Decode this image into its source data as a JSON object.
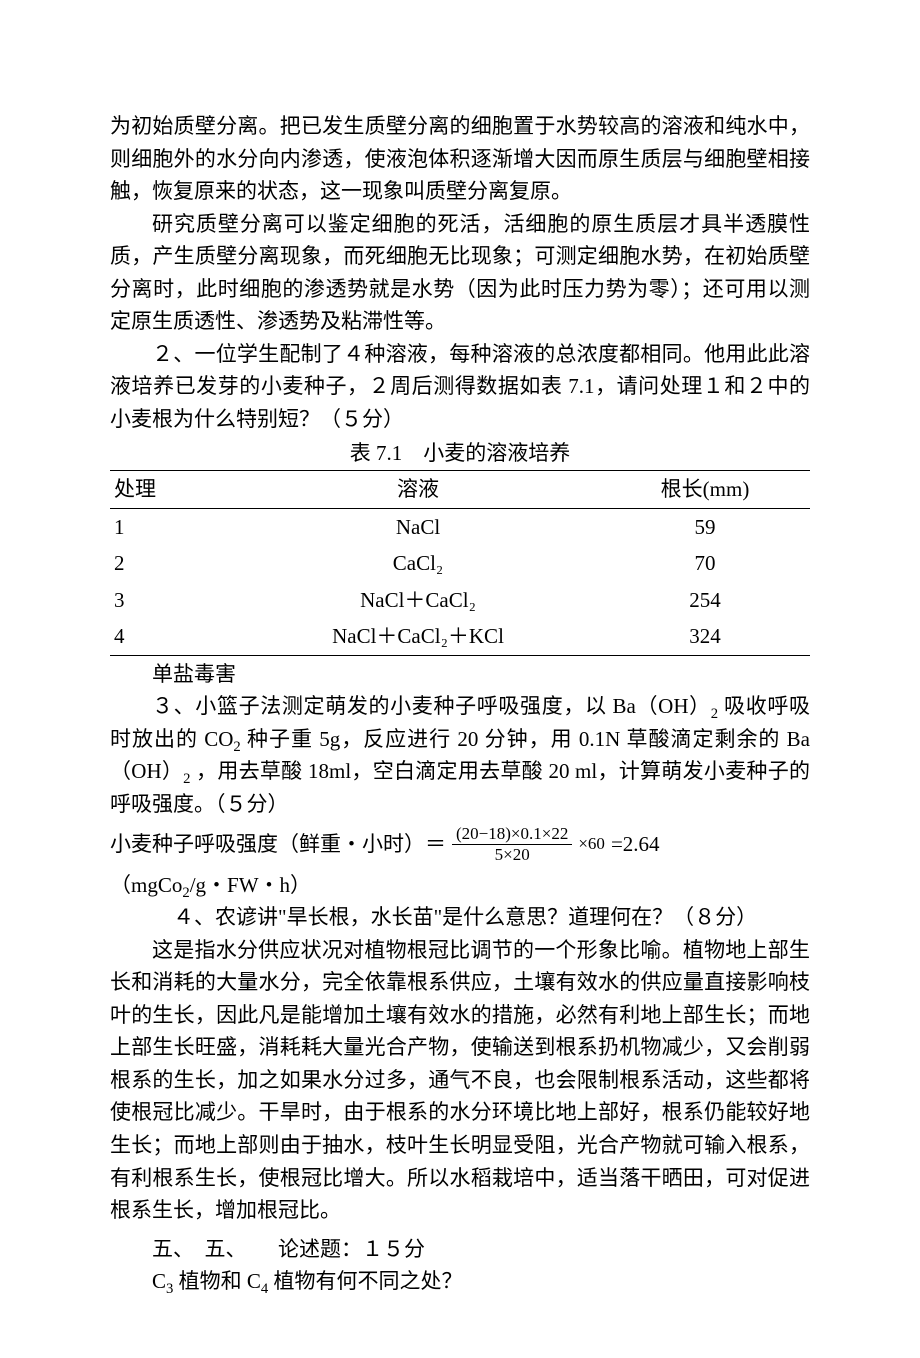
{
  "p1": "为初始质壁分离。把已发生质壁分离的细胞置于水势较高的溶液和纯水中，则细胞外的水分向内渗透，使液泡体积逐渐增大因而原生质层与细胞壁相接触，恢复原来的状态，这一现象叫质壁分离复原。",
  "p2": "研究质壁分离可以鉴定细胞的死活，活细胞的原生质层才具半透膜性质，产生质壁分离现象，而死细胞无比现象；可测定细胞水势，在初始质壁分离时，此时细胞的渗透势就是水势（因为此时压力势为零）；还可用以测定原生质透性、渗透势及粘滞性等。",
  "p3": "２、一位学生配制了４种溶液，每种溶液的总浓度都相同。他用此此溶液培养已发芽的小麦种子，２周后测得数据如表 7.1，请问处理１和２中的小麦根为什么特别短？（５分）",
  "table_caption": "表 7.1　小麦的溶液培养",
  "table": {
    "headers": [
      "处理",
      "溶液",
      "根长(mm)"
    ],
    "rows": [
      [
        "1",
        "NaCl",
        "59"
      ],
      [
        "2",
        "CaCl₂",
        "70"
      ],
      [
        "3",
        "NaCl＋CaCl₂",
        "254"
      ],
      [
        "4",
        "NaCl＋CaCl₂＋KCl",
        "324"
      ]
    ]
  },
  "p4": "单盐毒害",
  "p5_a": "３、小篮子法测定萌发的小麦种子呼吸强度，以 Ba（OH）",
  "p5_b": "吸收呼吸时放出的 CO",
  "p5_c": "种子重 5g，反应进行 20 分钟，用 0.1N 草酸滴定剩余的 Ba（OH）",
  "p5_d": "，用去草酸 18ml，空白滴定用去草酸 20 ml，计算萌发小麦种子的呼吸强度。（５分）",
  "formula_label": "小麦种子呼吸强度（鲜重・小时）＝",
  "formula_num": "(20−18)×0.1×22",
  "formula_den": "5×20",
  "formula_mul": "×60",
  "formula_result": "=2.64",
  "unit_a": "（mgCo",
  "unit_b": "/g・FW・h）",
  "p6": "４、农谚讲\"旱长根，水长苗\"是什么意思？道理何在？（８分）",
  "p7": "这是指水分供应状况对植物根冠比调节的一个形象比喻。植物地上部生长和消耗的大量水分，完全依靠根系供应，土壤有效水的供应量直接影响枝叶的生长，因此凡是能增加土壤有效水的措施，必然有利地上部生长；而地上部生长旺盛，消耗耗大量光合产物，使输送到根系扔机物减少，又会削弱根系的生长，加之如果水分过多，通气不良，也会限制根系活动，这些都将使根冠比减少。干旱时，由于根系的水分环境比地上部好，根系仍能较好地生长；而地上部则由于抽水，枝叶生长明显受阻，光合产物就可输入根系，有利根系生长，使根冠比增大。所以水稻栽培中，适当落干晒田，可对促进根系生长，增加根冠比。",
  "p8": "五、　五、　　论述题：１５分",
  "p9_a": "C",
  "p9_b": "植物和 C",
  "p9_c": "植物有何不同之处？"
}
